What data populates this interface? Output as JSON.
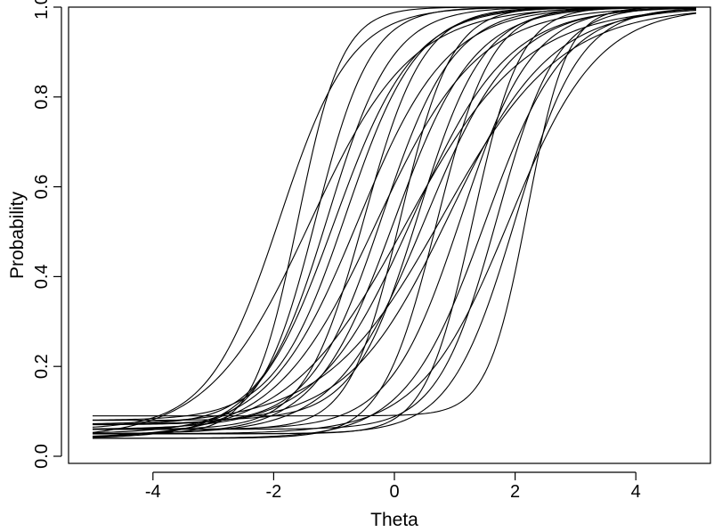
{
  "chart_data": {
    "type": "line",
    "title": "",
    "xlabel": "Theta",
    "ylabel": "Probability",
    "xlim": [
      -5,
      5
    ],
    "ylim": [
      0,
      1
    ],
    "xticks": [
      -4,
      -2,
      0,
      2,
      4
    ],
    "yticks": [
      0.0,
      0.2,
      0.4,
      0.6,
      0.8,
      1.0
    ],
    "xtick_labels": [
      "-4",
      "-2",
      "0",
      "2",
      "4"
    ],
    "ytick_labels": [
      "0.0",
      "0.2",
      "0.4",
      "0.6",
      "0.8",
      "1.0"
    ],
    "grid": false,
    "legend": "none",
    "curve_model": "p = c + (1 - c) / (1 + exp(-1.7 * a * (theta - b)))",
    "series": [
      {
        "a": 1.6,
        "b": -1.6,
        "c": 0.05
      },
      {
        "a": 1.3,
        "b": -1.3,
        "c": 0.06
      },
      {
        "a": 1.1,
        "b": -1.1,
        "c": 0.07
      },
      {
        "a": 0.9,
        "b": -1.0,
        "c": 0.04
      },
      {
        "a": 1.0,
        "b": -0.8,
        "c": 0.08
      },
      {
        "a": 0.8,
        "b": -0.6,
        "c": 0.05
      },
      {
        "a": 1.2,
        "b": -0.5,
        "c": 0.06
      },
      {
        "a": 0.7,
        "b": -0.3,
        "c": 0.04
      },
      {
        "a": 1.0,
        "b": -0.2,
        "c": 0.07
      },
      {
        "a": 0.9,
        "b": 0.0,
        "c": 0.05
      },
      {
        "a": 1.4,
        "b": 0.1,
        "c": 0.06
      },
      {
        "a": 0.6,
        "b": 0.2,
        "c": 0.04
      },
      {
        "a": 1.1,
        "b": 0.4,
        "c": 0.08
      },
      {
        "a": 0.8,
        "b": 0.5,
        "c": 0.05
      },
      {
        "a": 1.3,
        "b": 0.7,
        "c": 0.04
      },
      {
        "a": 0.7,
        "b": 0.9,
        "c": 0.07
      },
      {
        "a": 1.0,
        "b": 1.1,
        "c": 0.06
      },
      {
        "a": 1.5,
        "b": 1.3,
        "c": 0.05
      },
      {
        "a": 0.9,
        "b": 1.5,
        "c": 0.04
      },
      {
        "a": 1.2,
        "b": 1.7,
        "c": 0.06
      },
      {
        "a": 1.8,
        "b": 2.2,
        "c": 0.09
      },
      {
        "a": 0.8,
        "b": 1.9,
        "c": 0.05
      },
      {
        "a": 1.0,
        "b": -1.9,
        "c": 0.06
      },
      {
        "a": 0.7,
        "b": -1.4,
        "c": 0.04
      },
      {
        "a": 0.6,
        "b": 0.8,
        "c": 0.07
      },
      {
        "a": 1.1,
        "b": 2.0,
        "c": 0.05
      },
      {
        "a": 0.75,
        "b": 0.3,
        "c": 0.06
      }
    ]
  }
}
